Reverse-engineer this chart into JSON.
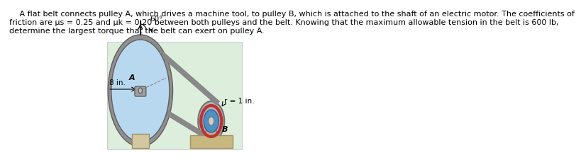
{
  "text_line1": "   A flat belt connects pulley A, which drives a machine tool, to pulley B, which is attached to the shaft of an electric motor. The coefficients of",
  "text_line2": "friction are μs = 0.25 and μk = 0.20 between both pulleys and the belt. Knowing that the maximum allowable tension in the belt is 600 lb,",
  "text_line3": "determine the largest torque that the belt can exert on pulley A.",
  "bg_color": "#ffffff",
  "diagram_bg": "#ddeedd",
  "pulley_A_face": "#b8d8f0",
  "pulley_A_rim": "#888888",
  "belt_color": "#888888",
  "label_A": "A",
  "label_B": "B",
  "label_8in": "8 in.",
  "label_r1in": "r = 1 in.",
  "label_60deg": "60°",
  "text_fontsize": 8.0,
  "fs_label": 7.5
}
